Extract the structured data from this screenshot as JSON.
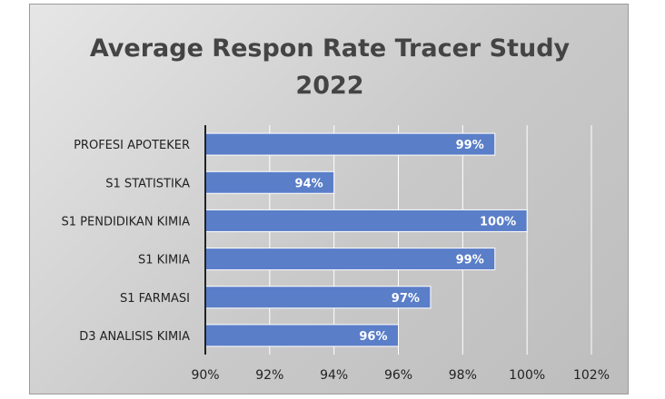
{
  "chart_data": {
    "type": "bar",
    "orientation": "horizontal",
    "title": [
      "Average Respon Rate Tracer Study",
      "2022"
    ],
    "categories": [
      "PROFESI APOTEKER",
      "S1 STATISTIKA",
      "S1 PENDIDIKAN KIMIA",
      "S1 KIMIA",
      "S1 FARMASI",
      "D3 ANALISIS KIMIA"
    ],
    "values": [
      99,
      94,
      100,
      99,
      97,
      96
    ],
    "data_labels": [
      "99%",
      "94%",
      "100%",
      "99%",
      "97%",
      "96%"
    ],
    "xlim": [
      90,
      102
    ],
    "ticks": [
      90,
      92,
      94,
      96,
      98,
      100,
      102
    ],
    "tick_labels": [
      "90%",
      "92%",
      "94%",
      "96%",
      "98%",
      "100%",
      "102%"
    ],
    "xlabel": "",
    "ylabel": "",
    "grid": true,
    "legend": "none",
    "colors": {
      "bar": "#5a7ec8",
      "bar_edge": "#ffffff",
      "grid": "#ffffff",
      "axis": "#222222",
      "title": "#444444"
    }
  }
}
